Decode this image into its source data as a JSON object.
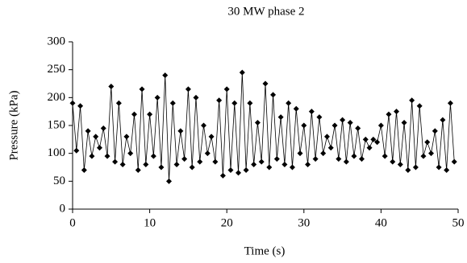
{
  "chart_data": {
    "type": "line",
    "title": "30 MW phase 2",
    "x_label": "Time (s)",
    "y_label": "Pressure (kPa)",
    "x": [
      0,
      0.5,
      1,
      1.5,
      2,
      2.5,
      3,
      3.5,
      4,
      4.5,
      5,
      5.5,
      6,
      6.5,
      7,
      7.5,
      8,
      8.5,
      9,
      9.5,
      10,
      10.5,
      11,
      11.5,
      12,
      12.5,
      13,
      13.5,
      14,
      14.5,
      15,
      15.5,
      16,
      16.5,
      17,
      17.5,
      18,
      18.5,
      19,
      19.5,
      20,
      20.5,
      21,
      21.5,
      22,
      22.5,
      23,
      23.5,
      24,
      24.5,
      25,
      25.5,
      26,
      26.5,
      27,
      27.5,
      28,
      28.5,
      29,
      29.5,
      30,
      30.5,
      31,
      31.5,
      32,
      32.5,
      33,
      33.5,
      34,
      34.5,
      35,
      35.5,
      36,
      36.5,
      37,
      37.5,
      38,
      38.5,
      39,
      39.5,
      40,
      40.5,
      41,
      41.5,
      42,
      42.5,
      43,
      43.5,
      44,
      44.5,
      45,
      45.5,
      46,
      46.5,
      47,
      47.5,
      48,
      48.5,
      49,
      49.5
    ],
    "series": [
      {
        "name": "Pressure",
        "color": "#000000",
        "values": [
          190,
          105,
          185,
          70,
          140,
          95,
          130,
          110,
          145,
          95,
          220,
          85,
          190,
          80,
          130,
          100,
          170,
          70,
          215,
          80,
          170,
          95,
          200,
          75,
          240,
          50,
          190,
          80,
          140,
          90,
          215,
          75,
          200,
          85,
          150,
          100,
          130,
          85,
          195,
          60,
          215,
          70,
          190,
          65,
          245,
          70,
          190,
          80,
          155,
          85,
          225,
          75,
          205,
          90,
          165,
          80,
          190,
          75,
          180,
          100,
          150,
          80,
          175,
          90,
          165,
          100,
          130,
          110,
          150,
          90,
          160,
          85,
          155,
          95,
          145,
          90,
          125,
          110,
          125,
          120,
          150,
          95,
          170,
          85,
          175,
          80,
          155,
          70,
          195,
          75,
          185,
          95,
          120,
          100,
          140,
          75,
          160,
          70,
          190,
          85
        ]
      }
    ],
    "xlim": [
      0,
      50
    ],
    "ylim": [
      0,
      300
    ],
    "xticks": [
      0,
      10,
      20,
      30,
      40,
      50
    ],
    "yticks": [
      0,
      50,
      100,
      150,
      200,
      250,
      300
    ]
  }
}
